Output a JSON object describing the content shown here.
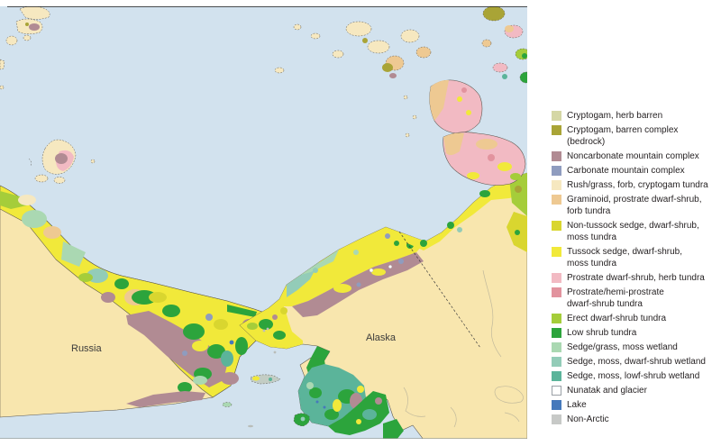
{
  "figure": {
    "map_labels": {
      "russia": "Russia",
      "alaska": "Alaska"
    },
    "colors": {
      "background": "#ffffff",
      "ocean": "#d2e2ee",
      "non_arctic_land": "#f8e6ae",
      "coastline": "#57534b",
      "top_border": "#1a1a1a",
      "bottom_border": "#8f9590",
      "label_text": "#3b3b3b",
      "legend_text": "#231f20"
    }
  },
  "legend": {
    "items": [
      {
        "name": "cryptogam-herb-barren",
        "label_lines": [
          "Cryptogam, herb barren"
        ],
        "color": "#d5d7a5"
      },
      {
        "name": "cryptogam-barren-complex-bedrock",
        "label_lines": [
          "Cryptogam, barren complex",
          "(bedrock)"
        ],
        "color": "#a9a436"
      },
      {
        "name": "noncarbonate-mountain-complex",
        "label_lines": [
          "Noncarbonate mountain complex"
        ],
        "color": "#b18b93"
      },
      {
        "name": "carbonate-mountain-complex",
        "label_lines": [
          "Carbonate mountain complex"
        ],
        "color": "#8f9cbf"
      },
      {
        "name": "rush-grass-forb-cryptogam-tundra",
        "label_lines": [
          "Rush/grass, forb, cryptogam tundra"
        ],
        "color": "#f6e8c0"
      },
      {
        "name": "graminoid-prostrate-dwarf-shrub-forb-tundra",
        "label_lines": [
          "Graminoid, prostrate dwarf-shrub,",
          "forb tundra"
        ],
        "color": "#eec992"
      },
      {
        "name": "non-tussock-sedge-dwarf-shrub-moss-tundra",
        "label_lines": [
          "Non-tussock sedge, dwarf-shrub,",
          "moss tundra"
        ],
        "color": "#d9d62f"
      },
      {
        "name": "tussock-sedge-dwarf-shrub-moss-tundra",
        "label_lines": [
          "Tussock sedge, dwarf-shrub,",
          "moss tundra"
        ],
        "color": "#f1e93a"
      },
      {
        "name": "prostrate-dwarf-shrub-herb-tundra",
        "label_lines": [
          "Prostrate dwarf-shrub, herb tundra"
        ],
        "color": "#f2bac3"
      },
      {
        "name": "prostrate-hemi-prostrate-dwarf-shrub-tundra",
        "label_lines": [
          "Prostrate/hemi-prostrate",
          "dwarf-shrub tundra"
        ],
        "color": "#e2939e"
      },
      {
        "name": "erect-dwarf-shrub-tundra",
        "label_lines": [
          "Erect dwarf-shrub tundra"
        ],
        "color": "#a5cd3a"
      },
      {
        "name": "low-shrub-tundra",
        "label_lines": [
          "Low shrub tundra"
        ],
        "color": "#2ca43c"
      },
      {
        "name": "sedge-grass-moss-wetland",
        "label_lines": [
          "Sedge/grass, moss wetland"
        ],
        "color": "#aad8b2"
      },
      {
        "name": "sedge-moss-dwarf-shrub-wetland",
        "label_lines": [
          "Sedge, moss, dwarf-shrub wetland"
        ],
        "color": "#93ccb8"
      },
      {
        "name": "sedge-moss-low-shrub-wetland",
        "label_lines": [
          "Sedge, moss, lowf-shrub wetland"
        ],
        "color": "#5bb49a"
      },
      {
        "name": "nunatak-and-glacier",
        "label_lines": [
          "Nunatak and glacier"
        ],
        "color": "#ffffff",
        "outlined": true
      },
      {
        "name": "lake",
        "label_lines": [
          "Lake"
        ],
        "color": "#4679bb"
      },
      {
        "name": "non-arctic",
        "label_lines": [
          "Non-Arctic"
        ],
        "color": "#c7c9c7"
      }
    ]
  }
}
